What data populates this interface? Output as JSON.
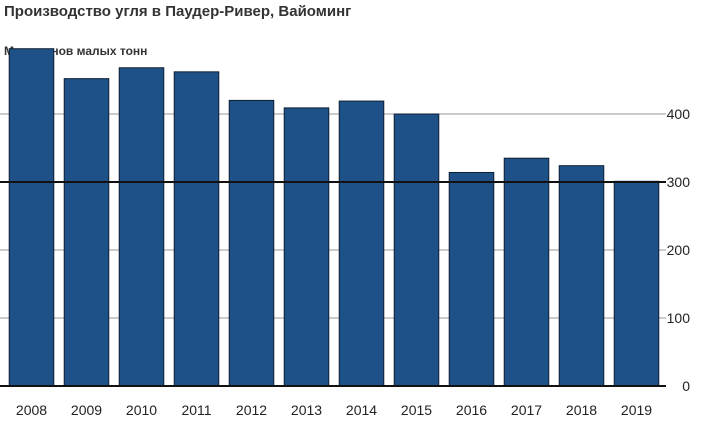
{
  "chart_data": {
    "type": "bar",
    "title": "Производство угля в Паудер-Ривер, Вайоминг",
    "ylabel": "Миллионов малых тонн",
    "xlabel": "",
    "categories": [
      "2008",
      "2009",
      "2010",
      "2011",
      "2012",
      "2013",
      "2014",
      "2015",
      "2016",
      "2017",
      "2018",
      "2019"
    ],
    "values": [
      496,
      452,
      468,
      462,
      420,
      409,
      419,
      400,
      314,
      335,
      324,
      301
    ],
    "ylim": [
      0,
      500
    ],
    "yticks": [
      0,
      100,
      200,
      300,
      400
    ],
    "grid": true,
    "bar_color": "#1f5189",
    "axis_emphasis_value": 300
  }
}
